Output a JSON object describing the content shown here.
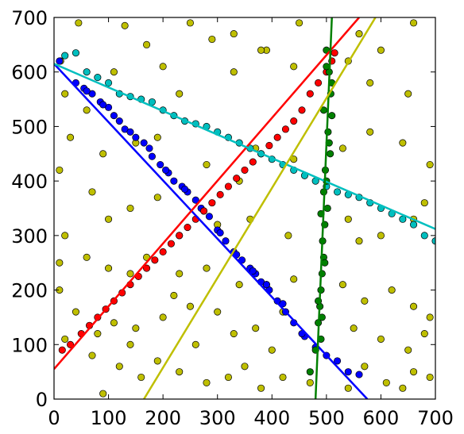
{
  "chart_data": {
    "type": "scatter",
    "title": "",
    "xlabel": "",
    "ylabel": "",
    "xlim": [
      0,
      700
    ],
    "ylim": [
      0,
      700
    ],
    "x_ticks": [
      0,
      100,
      200,
      300,
      400,
      500,
      600,
      700
    ],
    "y_ticks": [
      0,
      100,
      200,
      300,
      400,
      500,
      600,
      700
    ],
    "x_tick_labels": [
      "0",
      "100",
      "200",
      "300",
      "400",
      "500",
      "600",
      "700"
    ],
    "y_tick_labels": [
      "0",
      "100",
      "200",
      "300",
      "400",
      "500",
      "600",
      "700"
    ],
    "grid": false,
    "legend": "none",
    "series": [
      {
        "color": "#bfbf00",
        "role": "outliers",
        "points": [
          [
            12,
            620
          ],
          [
            45,
            690
          ],
          [
            130,
            685
          ],
          [
            170,
            650
          ],
          [
            250,
            690
          ],
          [
            290,
            660
          ],
          [
            330,
            670
          ],
          [
            390,
            640
          ],
          [
            450,
            690
          ],
          [
            560,
            670
          ],
          [
            600,
            640
          ],
          [
            660,
            690
          ],
          [
            20,
            560
          ],
          [
            60,
            530
          ],
          [
            110,
            600
          ],
          [
            200,
            610
          ],
          [
            230,
            560
          ],
          [
            330,
            600
          ],
          [
            380,
            640
          ],
          [
            440,
            610
          ],
          [
            540,
            620
          ],
          [
            580,
            580
          ],
          [
            650,
            560
          ],
          [
            30,
            480
          ],
          [
            90,
            450
          ],
          [
            150,
            470
          ],
          [
            190,
            480
          ],
          [
            280,
            430
          ],
          [
            340,
            400
          ],
          [
            370,
            460
          ],
          [
            440,
            440
          ],
          [
            530,
            460
          ],
          [
            580,
            490
          ],
          [
            640,
            470
          ],
          [
            690,
            430
          ],
          [
            10,
            420
          ],
          [
            70,
            380
          ],
          [
            100,
            330
          ],
          [
            140,
            350
          ],
          [
            190,
            370
          ],
          [
            230,
            300
          ],
          [
            300,
            320
          ],
          [
            360,
            330
          ],
          [
            430,
            300
          ],
          [
            540,
            330
          ],
          [
            560,
            290
          ],
          [
            600,
            300
          ],
          [
            660,
            330
          ],
          [
            680,
            360
          ],
          [
            20,
            300
          ],
          [
            60,
            260
          ],
          [
            100,
            240
          ],
          [
            140,
            230
          ],
          [
            170,
            260
          ],
          [
            230,
            230
          ],
          [
            280,
            240
          ],
          [
            340,
            210
          ],
          [
            390,
            210
          ],
          [
            440,
            220
          ],
          [
            530,
            210
          ],
          [
            570,
            180
          ],
          [
            620,
            200
          ],
          [
            660,
            170
          ],
          [
            690,
            150
          ],
          [
            10,
            200
          ],
          [
            40,
            160
          ],
          [
            80,
            120
          ],
          [
            110,
            140
          ],
          [
            150,
            130
          ],
          [
            200,
            150
          ],
          [
            220,
            190
          ],
          [
            250,
            170
          ],
          [
            300,
            160
          ],
          [
            330,
            120
          ],
          [
            370,
            130
          ],
          [
            420,
            160
          ],
          [
            550,
            130
          ],
          [
            600,
            110
          ],
          [
            650,
            90
          ],
          [
            680,
            120
          ],
          [
            20,
            110
          ],
          [
            70,
            80
          ],
          [
            120,
            60
          ],
          [
            160,
            40
          ],
          [
            190,
            70
          ],
          [
            230,
            50
          ],
          [
            280,
            30
          ],
          [
            320,
            40
          ],
          [
            350,
            60
          ],
          [
            380,
            20
          ],
          [
            420,
            40
          ],
          [
            470,
            30
          ],
          [
            540,
            20
          ],
          [
            570,
            60
          ],
          [
            610,
            30
          ],
          [
            660,
            50
          ],
          [
            690,
            40
          ],
          [
            90,
            10
          ],
          [
            140,
            100
          ],
          [
            260,
            100
          ],
          [
            400,
            90
          ],
          [
            640,
            20
          ],
          [
            10,
            250
          ]
        ]
      },
      {
        "color": "#0000ff",
        "role": "inliers",
        "points": [
          [
            10,
            620
          ],
          [
            40,
            580
          ],
          [
            55,
            570
          ],
          [
            70,
            560
          ],
          [
            85,
            545
          ],
          [
            100,
            535
          ],
          [
            110,
            520
          ],
          [
            130,
            495
          ],
          [
            150,
            480
          ],
          [
            165,
            470
          ],
          [
            180,
            445
          ],
          [
            195,
            430
          ],
          [
            210,
            415
          ],
          [
            220,
            400
          ],
          [
            235,
            390
          ],
          [
            245,
            380
          ],
          [
            260,
            365
          ],
          [
            270,
            350
          ],
          [
            285,
            335
          ],
          [
            300,
            310
          ],
          [
            315,
            290
          ],
          [
            330,
            270
          ],
          [
            345,
            255
          ],
          [
            360,
            240
          ],
          [
            370,
            230
          ],
          [
            380,
            215
          ],
          [
            395,
            200
          ],
          [
            410,
            180
          ],
          [
            425,
            160
          ],
          [
            440,
            140
          ],
          [
            460,
            115
          ],
          [
            480,
            95
          ],
          [
            500,
            80
          ],
          [
            520,
            70
          ],
          [
            540,
            50
          ],
          [
            560,
            45
          ],
          [
            60,
            565
          ],
          [
            90,
            540
          ],
          [
            120,
            510
          ],
          [
            140,
            490
          ],
          [
            175,
            460
          ],
          [
            205,
            420
          ],
          [
            240,
            385
          ],
          [
            275,
            345
          ],
          [
            305,
            305
          ],
          [
            335,
            265
          ],
          [
            365,
            235
          ],
          [
            390,
            210
          ],
          [
            420,
            175
          ],
          [
            455,
            120
          ]
        ]
      },
      {
        "color": "#ff0000",
        "role": "inliers",
        "points": [
          [
            15,
            90
          ],
          [
            30,
            100
          ],
          [
            50,
            120
          ],
          [
            65,
            135
          ],
          [
            80,
            150
          ],
          [
            95,
            165
          ],
          [
            110,
            180
          ],
          [
            125,
            195
          ],
          [
            140,
            210
          ],
          [
            155,
            225
          ],
          [
            170,
            240
          ],
          [
            185,
            255
          ],
          [
            200,
            270
          ],
          [
            215,
            285
          ],
          [
            230,
            300
          ],
          [
            245,
            315
          ],
          [
            260,
            330
          ],
          [
            275,
            345
          ],
          [
            290,
            360
          ],
          [
            305,
            375
          ],
          [
            320,
            390
          ],
          [
            335,
            405
          ],
          [
            350,
            420
          ],
          [
            365,
            435
          ],
          [
            380,
            450
          ],
          [
            395,
            465
          ],
          [
            410,
            480
          ],
          [
            425,
            495
          ],
          [
            440,
            510
          ],
          [
            455,
            530
          ],
          [
            470,
            560
          ],
          [
            485,
            580
          ],
          [
            500,
            600
          ],
          [
            510,
            620
          ],
          [
            515,
            635
          ]
        ]
      },
      {
        "color": "#00bfbf",
        "role": "inliers",
        "points": [
          [
            20,
            630
          ],
          [
            40,
            635
          ],
          [
            60,
            600
          ],
          [
            80,
            590
          ],
          [
            100,
            580
          ],
          [
            120,
            560
          ],
          [
            140,
            555
          ],
          [
            160,
            550
          ],
          [
            180,
            545
          ],
          [
            200,
            530
          ],
          [
            220,
            520
          ],
          [
            240,
            510
          ],
          [
            260,
            505
          ],
          [
            280,
            500
          ],
          [
            300,
            490
          ],
          [
            320,
            480
          ],
          [
            340,
            470
          ],
          [
            360,
            460
          ],
          [
            380,
            450
          ],
          [
            400,
            440
          ],
          [
            420,
            430
          ],
          [
            440,
            420
          ],
          [
            460,
            410
          ],
          [
            480,
            400
          ],
          [
            500,
            390
          ],
          [
            520,
            380
          ],
          [
            540,
            375
          ],
          [
            560,
            370
          ],
          [
            580,
            360
          ],
          [
            600,
            350
          ],
          [
            620,
            340
          ],
          [
            640,
            330
          ],
          [
            660,
            320
          ],
          [
            680,
            300
          ],
          [
            700,
            290
          ]
        ]
      },
      {
        "color": "#008000",
        "role": "inliers",
        "points": [
          [
            500,
            640
          ],
          [
            505,
            600
          ],
          [
            508,
            560
          ],
          [
            510,
            520
          ],
          [
            503,
            490
          ],
          [
            507,
            450
          ],
          [
            498,
            420
          ],
          [
            495,
            380
          ],
          [
            502,
            350
          ],
          [
            497,
            320
          ],
          [
            493,
            290
          ],
          [
            495,
            260
          ],
          [
            492,
            230
          ],
          [
            490,
            200
          ],
          [
            488,
            170
          ],
          [
            485,
            140
          ],
          [
            490,
            110
          ],
          [
            480,
            90
          ],
          [
            470,
            50
          ],
          [
            500,
            610
          ],
          [
            510,
            580
          ],
          [
            495,
            530
          ],
          [
            505,
            470
          ],
          [
            500,
            400
          ],
          [
            490,
            340
          ],
          [
            497,
            250
          ],
          [
            485,
            180
          ],
          [
            492,
            150
          ]
        ]
      }
    ],
    "fit_lines": [
      {
        "color": "#0000ff",
        "x": [
          0,
          575
        ],
        "y": [
          615,
          0
        ]
      },
      {
        "color": "#ff0000",
        "x": [
          0,
          560
        ],
        "y": [
          55,
          700
        ]
      },
      {
        "color": "#00bfbf",
        "x": [
          0,
          700
        ],
        "y": [
          615,
          312
        ]
      },
      {
        "color": "#008000",
        "x": [
          480,
          510
        ],
        "y": [
          0,
          700
        ]
      },
      {
        "color": "#bfbf00",
        "x": [
          165,
          590
        ],
        "y": [
          0,
          700
        ]
      }
    ]
  }
}
